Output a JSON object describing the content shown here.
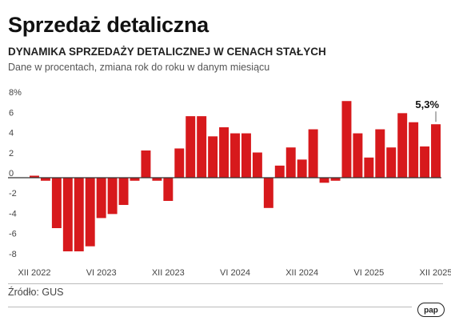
{
  "title": "Sprzedaż detaliczna",
  "subtitle": "DYNAMIKA SPRZEDAŻY DETALICZNEJ W CENACH STAŁYCH",
  "description": "Dane w procentach, zmiana rok do roku w danym miesiącu",
  "source": "Źródło: GUS",
  "logo_text": "pap",
  "colors": {
    "bar": "#d7191c",
    "axis": "#333333",
    "grid": "#dddddd",
    "text": "#444444"
  },
  "chart_data": {
    "type": "bar",
    "unit": "%",
    "x": [
      "XII 2022",
      "I 2023",
      "II 2023",
      "III 2023",
      "IV 2023",
      "V 2023",
      "VI 2023",
      "VII 2023",
      "VIII 2023",
      "IX 2023",
      "X 2023",
      "XI 2023",
      "XII 2023",
      "I 2024",
      "II 2024",
      "III 2024",
      "IV 2024",
      "V 2024",
      "VI 2024",
      "VII 2024",
      "VIII 2024",
      "IX 2024",
      "X 2024",
      "XI 2024",
      "XII 2024",
      "I 2025",
      "II 2025",
      "III 2025",
      "IV 2025",
      "V 2025",
      "VI 2025",
      "VII 2025",
      "VIII 2025",
      "IX 2025",
      "X 2025",
      "XI 2025",
      "XII 2025"
    ],
    "values": [
      0.2,
      -0.3,
      -5.0,
      -7.3,
      -7.3,
      -6.8,
      -4.0,
      -3.6,
      -2.7,
      -0.3,
      2.7,
      -0.3,
      -2.3,
      2.9,
      6.1,
      6.1,
      4.1,
      5.0,
      4.4,
      4.4,
      2.5,
      -3.0,
      1.2,
      3.0,
      1.8,
      4.8,
      -0.5,
      -0.3,
      7.6,
      4.4,
      2.0,
      4.8,
      3.0,
      6.4,
      5.5,
      3.1,
      5.3
    ],
    "tick_labels": [
      "XII 2022",
      "VI 2023",
      "XII 2023",
      "VI 2024",
      "XII 2024",
      "VI 2025",
      "XII 2025"
    ],
    "tick_indices": [
      0,
      6,
      12,
      18,
      24,
      30,
      36
    ],
    "y_ticks": [
      {
        "value": 8,
        "label": "8%"
      },
      {
        "value": 6,
        "label": "6"
      },
      {
        "value": 4,
        "label": "4"
      },
      {
        "value": 2,
        "label": "2"
      },
      {
        "value": 0,
        "label": "0"
      },
      {
        "value": -2,
        "label": "-2"
      },
      {
        "value": -4,
        "label": "-4"
      },
      {
        "value": -6,
        "label": "-6"
      },
      {
        "value": -8,
        "label": "-8"
      }
    ],
    "ylim": [
      -8,
      8
    ],
    "grid": false,
    "annotation": {
      "index": 36,
      "text": "5,3%"
    }
  }
}
